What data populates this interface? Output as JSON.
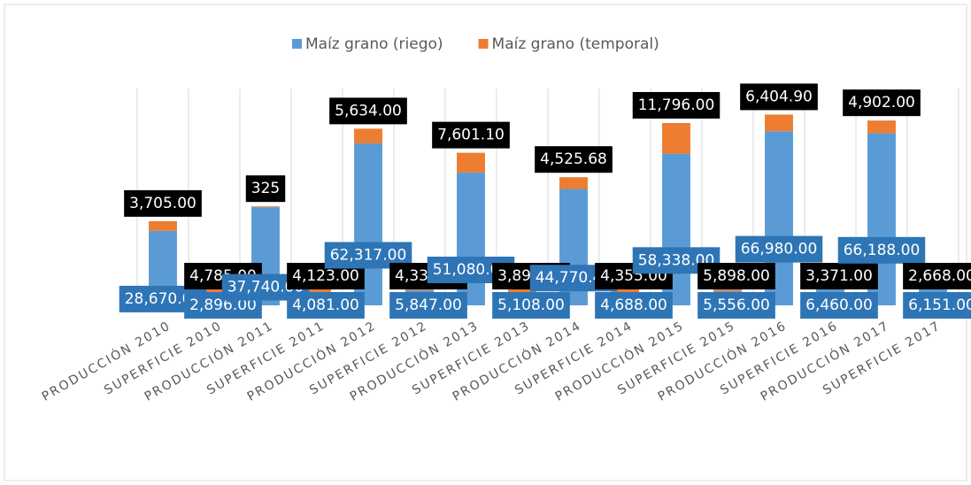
{
  "chart_data": {
    "type": "bar",
    "stacked": true,
    "categories": [
      "PRODUCCIÓN 2010",
      "SUPERFICIE 2010",
      "PRODUCCIÓN 2011",
      "SUPERFICIE 2011",
      "PRODUCCIÓN 2012",
      "SUPERFICIE 2012",
      "PRODUCCIÓN 2013",
      "SUPERFICIE 2013",
      "PRODUCCIÓN 2014",
      "SUPERFICIE 2014",
      "PRODUCCIÓN 2015",
      "SUPERFICIE 2015",
      "PRODUCCIÓN 2016",
      "SUPERFICIE 2016",
      "PRODUCCIÓN 2017",
      "SUPERFICIE 2017"
    ],
    "series": [
      {
        "name": "Maíz grano (riego)",
        "color": "#5b9bd5",
        "values": [
          28670,
          2896,
          37740,
          4081,
          62317,
          5847,
          51080,
          5108,
          44770.4,
          4688,
          58338,
          5556,
          66980,
          6460,
          66188,
          6151
        ],
        "value_labels": [
          "28,670.00",
          "2,896.00",
          "37,740.00",
          "4,081.00",
          "62,317.00",
          "5,847.00",
          "51,080.00",
          "5,108.00",
          "44,770.40",
          "4,688.00",
          "58,338.00",
          "5,556.00",
          "66,980.00",
          "6,460.00",
          "66,188.00",
          "6,151.00"
        ]
      },
      {
        "name": "Maíz grano (temporal)",
        "color": "#ed7d31",
        "values": [
          3705,
          4785,
          325,
          4123,
          5634,
          4334,
          7601.1,
          3898,
          4525.68,
          4355,
          11796,
          5898,
          6404.9,
          3371,
          4902,
          2668
        ],
        "value_labels": [
          "3,705.00",
          "4,785.00",
          "325",
          "4,123.00",
          "5,634.00",
          "4,334.00",
          "7,601.10",
          "3,898.00",
          "4,525.68",
          "4,355.00",
          "11,796.00",
          "5,898.00",
          "6,404.90",
          "3,371.00",
          "4,902.00",
          "2,668.00"
        ]
      }
    ],
    "ylim": [
      0,
      80000
    ],
    "legend": "top"
  }
}
